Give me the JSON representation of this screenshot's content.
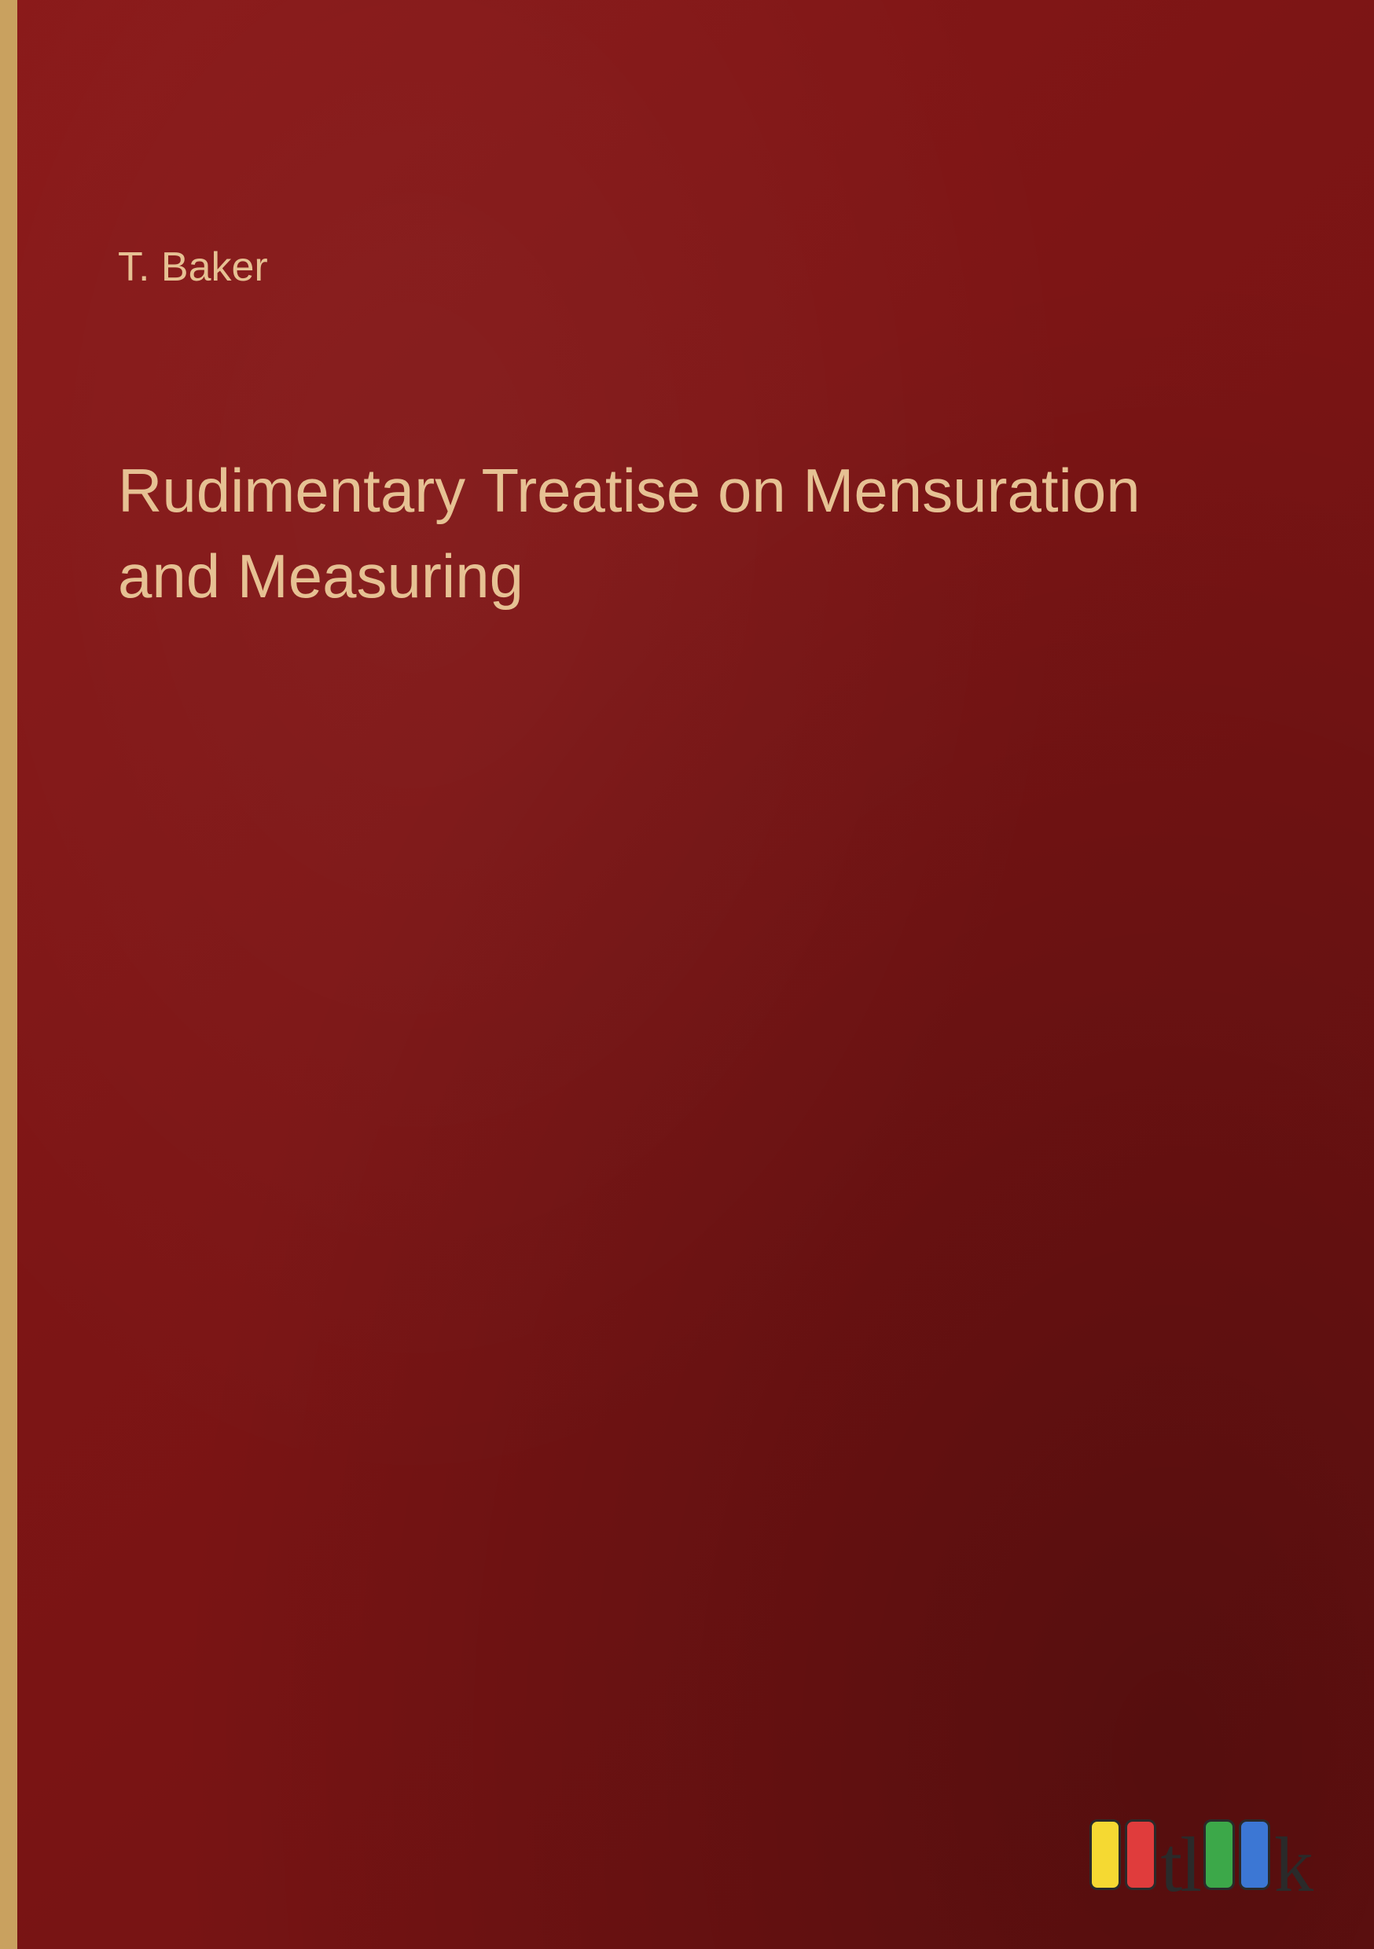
{
  "cover": {
    "author": "T. Baker",
    "title": "Rudimentary Treatise on Mensuration and Measuring",
    "background_color": "#7d1515",
    "spine_color": "#c9a15f",
    "text_color": "#e6c193",
    "author_fontsize": 52,
    "title_fontsize": 78
  },
  "publisher_logo": {
    "name": "outlook",
    "text_part1": "tl",
    "text_part2": "k",
    "bar_colors": [
      "#f5d932",
      "#e03c3c",
      "#3ca849",
      "#3c77d4"
    ],
    "bar_border_color": "#2a2a2a",
    "text_color": "#2a2a2a"
  }
}
